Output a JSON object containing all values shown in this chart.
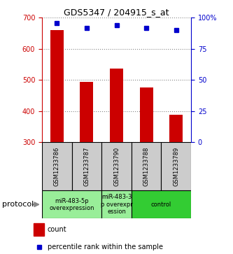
{
  "title": "GDS5347 / 204915_s_at",
  "samples": [
    "GSM1233786",
    "GSM1233787",
    "GSM1233790",
    "GSM1233788",
    "GSM1233789"
  ],
  "counts": [
    660,
    493,
    537,
    476,
    388
  ],
  "percentiles": [
    96,
    92,
    94,
    92,
    90
  ],
  "bar_color": "#cc0000",
  "dot_color": "#0000cc",
  "ylim_left": [
    300,
    700
  ],
  "ylim_right": [
    0,
    100
  ],
  "yticks_left": [
    300,
    400,
    500,
    600,
    700
  ],
  "yticks_right": [
    0,
    25,
    50,
    75,
    100
  ],
  "groups": [
    {
      "label": "miR-483-5p\noverexpression",
      "samples": [
        0,
        1
      ],
      "color": "#99ee99"
    },
    {
      "label": "miR-483-3\np overexpr\nession",
      "samples": [
        2
      ],
      "color": "#99ee99"
    },
    {
      "label": "control",
      "samples": [
        3,
        4
      ],
      "color": "#33cc33"
    }
  ],
  "protocol_label": "protocol",
  "legend_count_label": "count",
  "legend_percentile_label": "percentile rank within the sample",
  "background_color": "#ffffff",
  "left_axis_color": "#cc0000",
  "right_axis_color": "#0000cc",
  "bar_width": 0.45,
  "sample_box_color": "#cccccc",
  "title_fontsize": 9,
  "tick_fontsize": 7,
  "label_fontsize": 6,
  "legend_fontsize": 7,
  "protocol_fontsize": 8
}
